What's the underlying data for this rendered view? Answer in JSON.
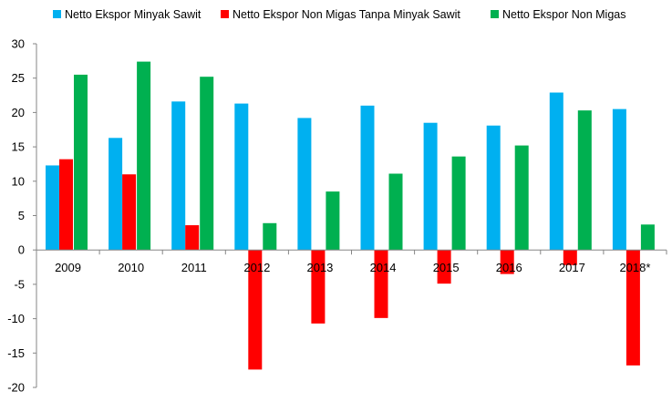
{
  "chart_data": {
    "type": "bar",
    "title": "",
    "xlabel": "",
    "ylabel": "",
    "ylim": [
      -20,
      30
    ],
    "yticks": [
      30,
      25,
      20,
      15,
      10,
      5,
      0,
      -5,
      -10,
      -15,
      -20
    ],
    "grid": false,
    "legend_position": "top",
    "categories": [
      "2009",
      "2010",
      "2011",
      "2012",
      "2013",
      "2014",
      "2015",
      "2016",
      "2017",
      "2018*"
    ],
    "series": [
      {
        "name": "Netto Ekspor Minyak Sawit",
        "color": "#00B0F0",
        "values": [
          12.3,
          16.3,
          21.6,
          21.3,
          19.2,
          21.0,
          18.5,
          18.1,
          22.9,
          20.5
        ]
      },
      {
        "name": "Netto Ekspor Non Migas Tanpa Minyak Sawit",
        "color": "#FF0000",
        "values": [
          13.2,
          11.0,
          3.6,
          -17.4,
          -10.7,
          -9.9,
          -4.9,
          -3.5,
          -2.2,
          -16.8
        ]
      },
      {
        "name": "Netto Ekspor Non Migas",
        "color": "#00B050",
        "values": [
          25.5,
          27.4,
          25.2,
          3.9,
          8.5,
          11.1,
          13.6,
          15.2,
          20.3,
          3.7
        ]
      }
    ]
  }
}
